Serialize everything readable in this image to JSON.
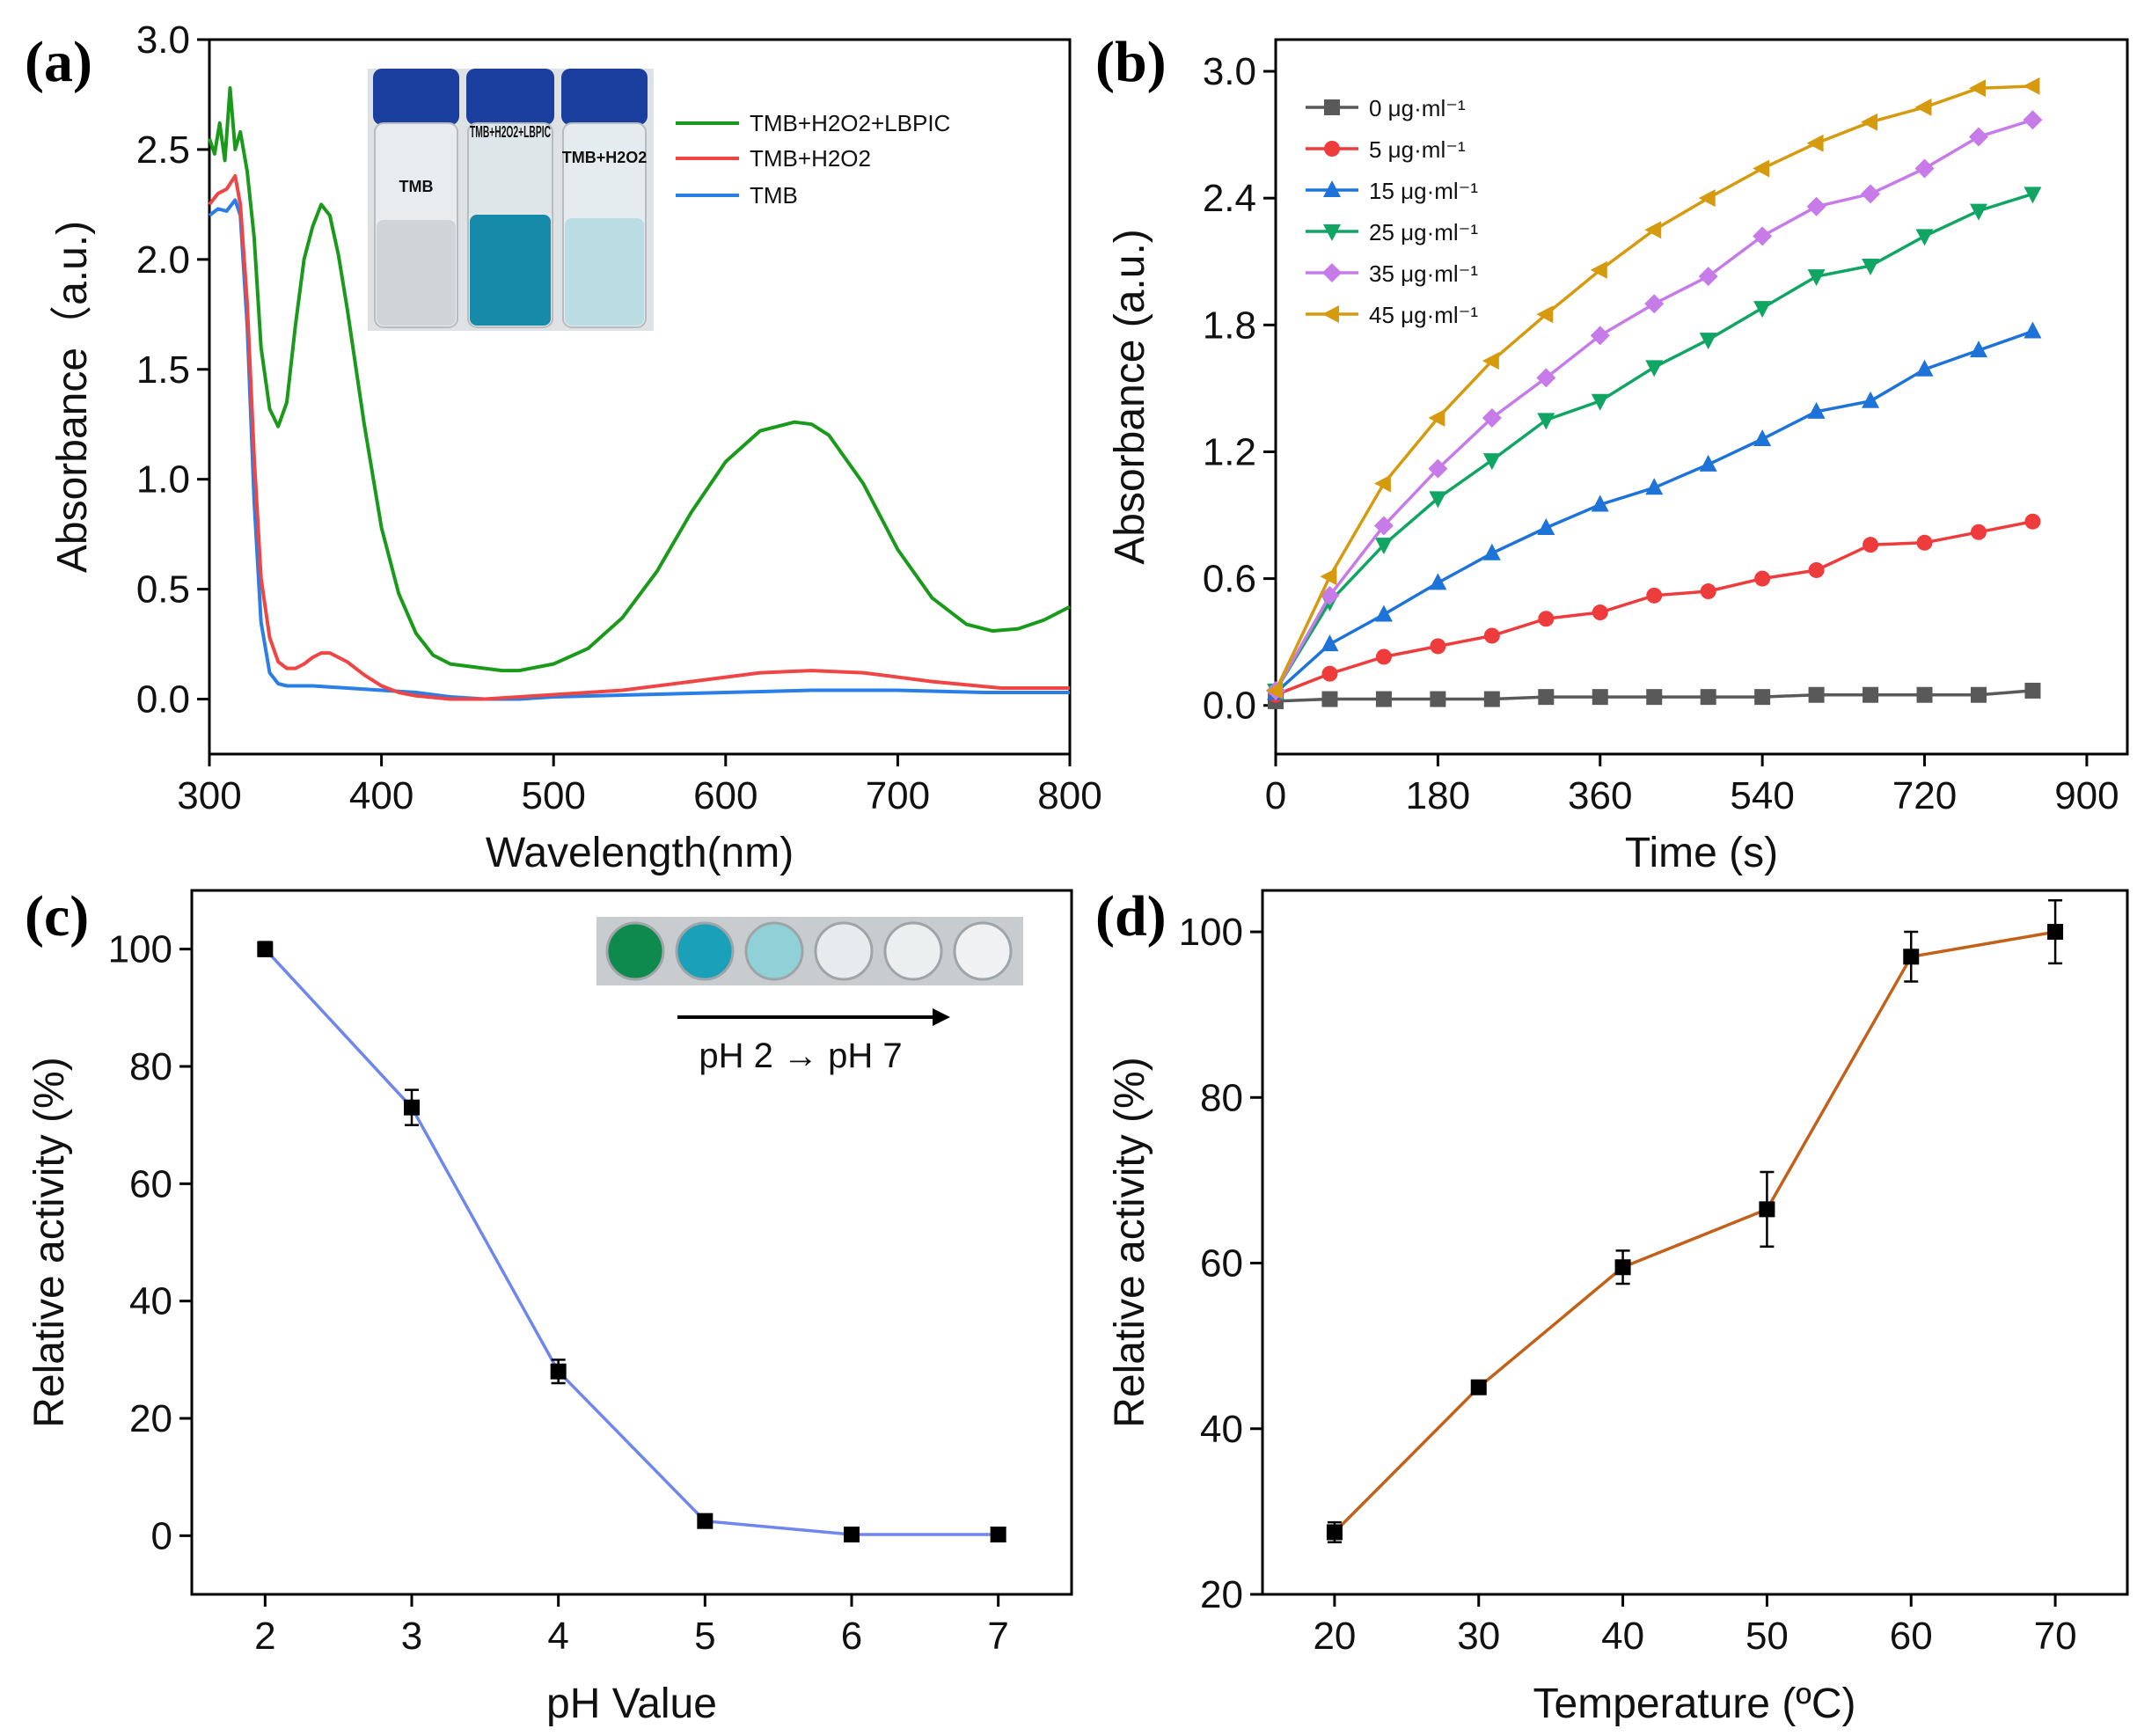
{
  "colors": {
    "a_green": "#1a9a1a",
    "a_red": "#ef4545",
    "a_blue": "#2a7ee8",
    "b0": "#595959",
    "b5": "#ee3b3b",
    "b15": "#1e73d8",
    "b25": "#11a564",
    "b35": "#c67be9",
    "b45": "#d69a0f",
    "c_line": "#6f86ef",
    "d_line": "#c2621a"
  },
  "chart_data": [
    {
      "panel": "(a)",
      "type": "line",
      "xlabel": "Wavelength(nm)",
      "ylabel": "Absorbance（a.u.)",
      "xlim": [
        300,
        800
      ],
      "ylim": [
        -0.25,
        3.0
      ],
      "xticks": [
        "300",
        "400",
        "500",
        "600",
        "700",
        "800"
      ],
      "yticks": [
        "0.0",
        "0.5",
        "1.0",
        "1.5",
        "2.0",
        "2.5",
        "3.0"
      ],
      "series": [
        {
          "name": "TMB+H2O2+LBPIC",
          "color_key": "a_green",
          "x": [
            300,
            303,
            306,
            309,
            312,
            315,
            318,
            322,
            326,
            330,
            335,
            340,
            345,
            350,
            355,
            360,
            365,
            370,
            375,
            380,
            390,
            400,
            410,
            420,
            430,
            440,
            450,
            460,
            470,
            480,
            500,
            520,
            540,
            560,
            580,
            600,
            620,
            640,
            650,
            660,
            680,
            700,
            720,
            740,
            755,
            770,
            785,
            800
          ],
          "y": [
            2.55,
            2.48,
            2.62,
            2.45,
            2.78,
            2.5,
            2.58,
            2.4,
            2.1,
            1.6,
            1.32,
            1.24,
            1.35,
            1.7,
            2.0,
            2.15,
            2.25,
            2.2,
            2.02,
            1.78,
            1.25,
            0.78,
            0.48,
            0.3,
            0.2,
            0.16,
            0.15,
            0.14,
            0.13,
            0.13,
            0.16,
            0.23,
            0.37,
            0.58,
            0.85,
            1.08,
            1.22,
            1.26,
            1.25,
            1.2,
            0.98,
            0.68,
            0.46,
            0.34,
            0.31,
            0.32,
            0.36,
            0.42
          ]
        },
        {
          "name": "TMB+H2O2",
          "color_key": "a_red",
          "x": [
            300,
            305,
            310,
            315,
            318,
            322,
            326,
            330,
            335,
            340,
            345,
            350,
            355,
            360,
            365,
            370,
            380,
            390,
            400,
            410,
            420,
            440,
            460,
            480,
            500,
            540,
            580,
            620,
            650,
            680,
            720,
            760,
            800
          ],
          "y": [
            2.25,
            2.3,
            2.32,
            2.38,
            2.25,
            1.8,
            1.1,
            0.55,
            0.28,
            0.17,
            0.14,
            0.14,
            0.16,
            0.19,
            0.21,
            0.21,
            0.17,
            0.11,
            0.06,
            0.03,
            0.015,
            0.0,
            0.0,
            0.01,
            0.02,
            0.04,
            0.08,
            0.12,
            0.13,
            0.12,
            0.08,
            0.05,
            0.05
          ]
        },
        {
          "name": "TMB",
          "color_key": "a_blue",
          "x": [
            300,
            305,
            310,
            315,
            318,
            322,
            326,
            330,
            335,
            340,
            345,
            350,
            360,
            380,
            400,
            420,
            440,
            460,
            480,
            500,
            550,
            600,
            650,
            700,
            750,
            800
          ],
          "y": [
            2.2,
            2.23,
            2.22,
            2.27,
            2.2,
            1.7,
            0.9,
            0.35,
            0.12,
            0.07,
            0.06,
            0.06,
            0.06,
            0.05,
            0.04,
            0.03,
            0.01,
            0.0,
            0.0,
            0.01,
            0.02,
            0.03,
            0.04,
            0.04,
            0.03,
            0.03
          ]
        }
      ],
      "legend": [
        "TMB+H2O2+LBPIC",
        "TMB+H2O2",
        "TMB"
      ],
      "inset_photo": {
        "vials": [
          "TMB",
          "TMB+H2O2+LBPIC",
          "TMB+H2O2"
        ]
      }
    },
    {
      "panel": "(b)",
      "type": "line",
      "xlabel": "Time (s)",
      "ylabel": "Absorbance (a.u.)",
      "xlim": [
        0,
        945
      ],
      "ylim": [
        -0.23,
        3.15
      ],
      "xticks": [
        "0",
        "180",
        "360",
        "540",
        "720",
        "900"
      ],
      "yticks": [
        "0.0",
        "0.6",
        "1.2",
        "1.8",
        "2.4",
        "3.0"
      ],
      "x": [
        0,
        60,
        120,
        180,
        240,
        300,
        360,
        420,
        480,
        540,
        600,
        660,
        720,
        780,
        840
      ],
      "series": [
        {
          "name": "0  μg·ml⁻¹",
          "color_key": "b0",
          "marker": "square",
          "values": [
            0.02,
            0.03,
            0.03,
            0.03,
            0.03,
            0.04,
            0.04,
            0.04,
            0.04,
            0.04,
            0.05,
            0.05,
            0.05,
            0.05,
            0.07
          ]
        },
        {
          "name": "5  μg·ml⁻¹",
          "color_key": "b5",
          "marker": "circle",
          "values": [
            0.05,
            0.15,
            0.23,
            0.28,
            0.33,
            0.41,
            0.44,
            0.52,
            0.54,
            0.6,
            0.64,
            0.76,
            0.77,
            0.82,
            0.87
          ]
        },
        {
          "name": "15 μg·ml⁻¹",
          "color_key": "b15",
          "marker": "triangle-up",
          "values": [
            0.06,
            0.29,
            0.43,
            0.58,
            0.72,
            0.84,
            0.95,
            1.03,
            1.14,
            1.26,
            1.39,
            1.44,
            1.59,
            1.68,
            1.77
          ]
        },
        {
          "name": "25 μg·ml⁻¹",
          "color_key": "b25",
          "marker": "triangle-down",
          "values": [
            0.07,
            0.49,
            0.76,
            0.98,
            1.16,
            1.35,
            1.44,
            1.6,
            1.73,
            1.88,
            2.03,
            2.08,
            2.22,
            2.34,
            2.42
          ]
        },
        {
          "name": "35 μg·ml⁻¹",
          "color_key": "b35",
          "marker": "diamond",
          "values": [
            0.07,
            0.52,
            0.85,
            1.12,
            1.36,
            1.55,
            1.75,
            1.9,
            2.03,
            2.22,
            2.36,
            2.42,
            2.54,
            2.69,
            2.77
          ]
        },
        {
          "name": "45 μg·ml⁻¹",
          "color_key": "b45",
          "marker": "triangle-left",
          "values": [
            0.07,
            0.61,
            1.05,
            1.36,
            1.63,
            1.85,
            2.06,
            2.25,
            2.4,
            2.54,
            2.66,
            2.76,
            2.83,
            2.92,
            2.93
          ]
        }
      ]
    },
    {
      "panel": "(c)",
      "type": "line",
      "xlabel": "pH Value",
      "ylabel": "Relative activity (%)",
      "xlim": [
        1.5,
        7.5
      ],
      "ylim": [
        -10,
        110
      ],
      "xticks": [
        "2",
        "3",
        "4",
        "5",
        "6",
        "7"
      ],
      "yticks": [
        "0",
        "20",
        "40",
        "60",
        "80",
        "100"
      ],
      "x": [
        2,
        3,
        4,
        5,
        6,
        7
      ],
      "values": [
        100,
        73,
        28,
        2.5,
        0.2,
        0.2
      ],
      "errors": [
        1.2,
        3,
        2,
        0.8,
        0.8,
        0.8
      ],
      "inset_caption": "pH 2 → pH 7",
      "inset_wells": [
        "#0e8a4e",
        "#1aa0b8",
        "#8fd1d6",
        "#e6ecee",
        "#eceff0",
        "#eff1f2"
      ]
    },
    {
      "panel": "(d)",
      "type": "line",
      "xlabel": "Temperature (ºC)",
      "ylabel": "Relative activity (%)",
      "xlim": [
        15,
        75
      ],
      "ylim": [
        20,
        105
      ],
      "xticks": [
        "20",
        "30",
        "40",
        "50",
        "60",
        "70"
      ],
      "yticks": [
        "20",
        "40",
        "60",
        "80",
        "100"
      ],
      "x": [
        20,
        30,
        40,
        50,
        60,
        70
      ],
      "values": [
        27.5,
        45,
        59.5,
        66.5,
        97,
        100
      ],
      "errors": [
        1.2,
        0.5,
        2,
        4.5,
        3,
        3.8
      ]
    }
  ]
}
